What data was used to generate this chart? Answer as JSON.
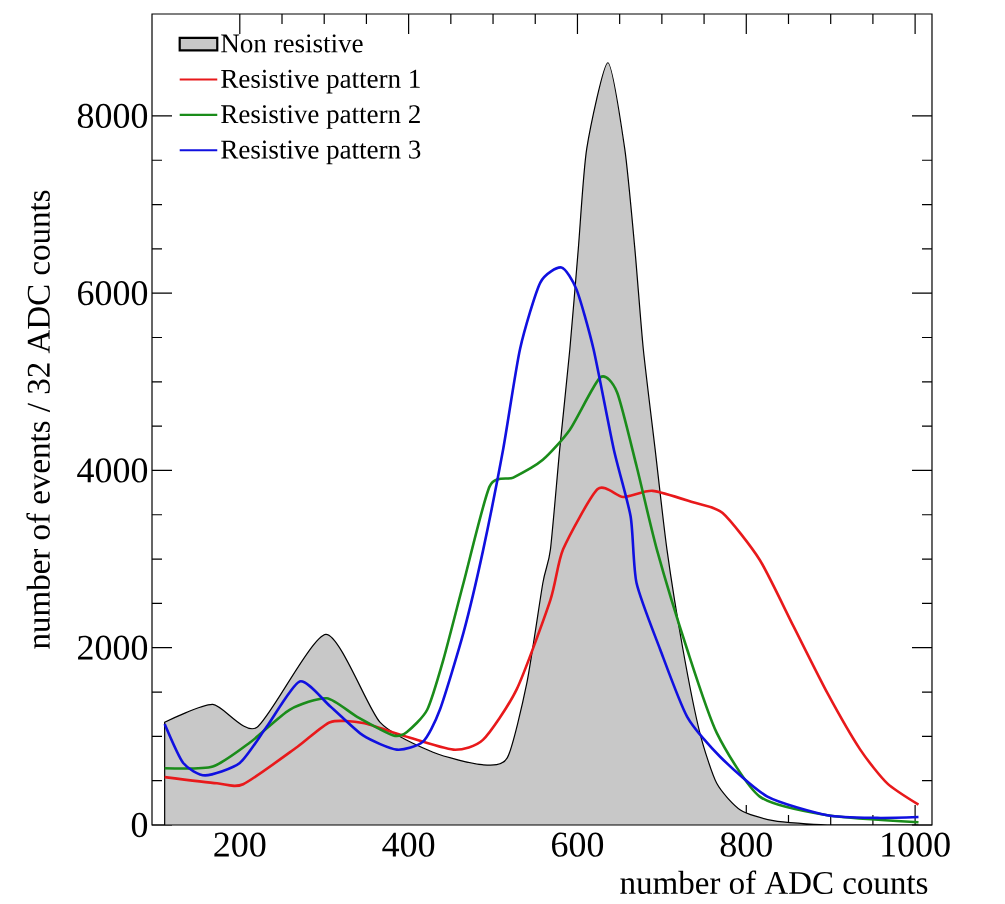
{
  "chart_data": {
    "type": "line",
    "xlabel": "number of ADC counts",
    "ylabel": "number of events / 32 ADC counts",
    "xlim": [
      96,
      1020
    ],
    "ylim": [
      0,
      9150
    ],
    "xticks": [
      200,
      400,
      600,
      800,
      1000
    ],
    "yticks": [
      0,
      2000,
      4000,
      6000,
      8000
    ],
    "legend": "top left",
    "series": [
      {
        "name": "Non resistive",
        "type": "area",
        "color": "#c8c8c8",
        "x": [
          111,
          168,
          220,
          302,
          366,
          429,
          487,
          517,
          540,
          559,
          568,
          579,
          591,
          601,
          611,
          636,
          656,
          668,
          678,
          692,
          706,
          725,
          745,
          765,
          793,
          832,
          896,
          1004
        ],
        "values": [
          1160,
          1360,
          1100,
          2150,
          1160,
          820,
          680,
          760,
          1600,
          2730,
          3110,
          4240,
          5370,
          6500,
          7630,
          8600,
          7630,
          6500,
          5370,
          4240,
          3110,
          1980,
          1040,
          470,
          170,
          50,
          0,
          0
        ]
      },
      {
        "name": "Resistive pattern 1",
        "color": "#e8191b",
        "x": [
          111,
          173,
          204,
          268,
          307,
          346,
          393,
          453,
          488,
          528,
          568,
          583,
          624,
          654,
          689,
          737,
          772,
          816,
          856,
          896,
          935,
          967,
          1004
        ],
        "values": [
          540,
          470,
          460,
          880,
          1160,
          1150,
          1010,
          850,
          960,
          1530,
          2540,
          3110,
          3790,
          3700,
          3770,
          3640,
          3520,
          2990,
          2240,
          1490,
          850,
          470,
          230
        ]
      },
      {
        "name": "Resistive pattern 2",
        "color": "#1a8c1a",
        "x": [
          111,
          168,
          212,
          259,
          303,
          339,
          382,
          398,
          422,
          441,
          465,
          496,
          524,
          559,
          591,
          627,
          647,
          670,
          694,
          730,
          765,
          816,
          896,
          1004
        ],
        "values": [
          640,
          660,
          930,
          1300,
          1430,
          1220,
          1010,
          1050,
          1300,
          1860,
          2730,
          3820,
          3920,
          4120,
          4460,
          5050,
          4880,
          4050,
          3110,
          1980,
          1040,
          320,
          110,
          30
        ]
      },
      {
        "name": "Resistive pattern 3",
        "color": "#1010e0",
        "x": [
          111,
          133,
          159,
          200,
          232,
          271,
          307,
          346,
          386,
          417,
          437,
          465,
          488,
          512,
          532,
          556,
          581,
          599,
          619,
          643,
          663,
          670,
          698,
          730,
          769,
          825,
          896,
          955,
          1004
        ],
        "values": [
          1140,
          700,
          560,
          700,
          1110,
          1620,
          1340,
          1010,
          850,
          940,
          1300,
          2170,
          3090,
          4240,
          5370,
          6120,
          6290,
          6040,
          5370,
          4240,
          3480,
          2730,
          1980,
          1220,
          770,
          320,
          110,
          80,
          90
        ]
      }
    ]
  }
}
